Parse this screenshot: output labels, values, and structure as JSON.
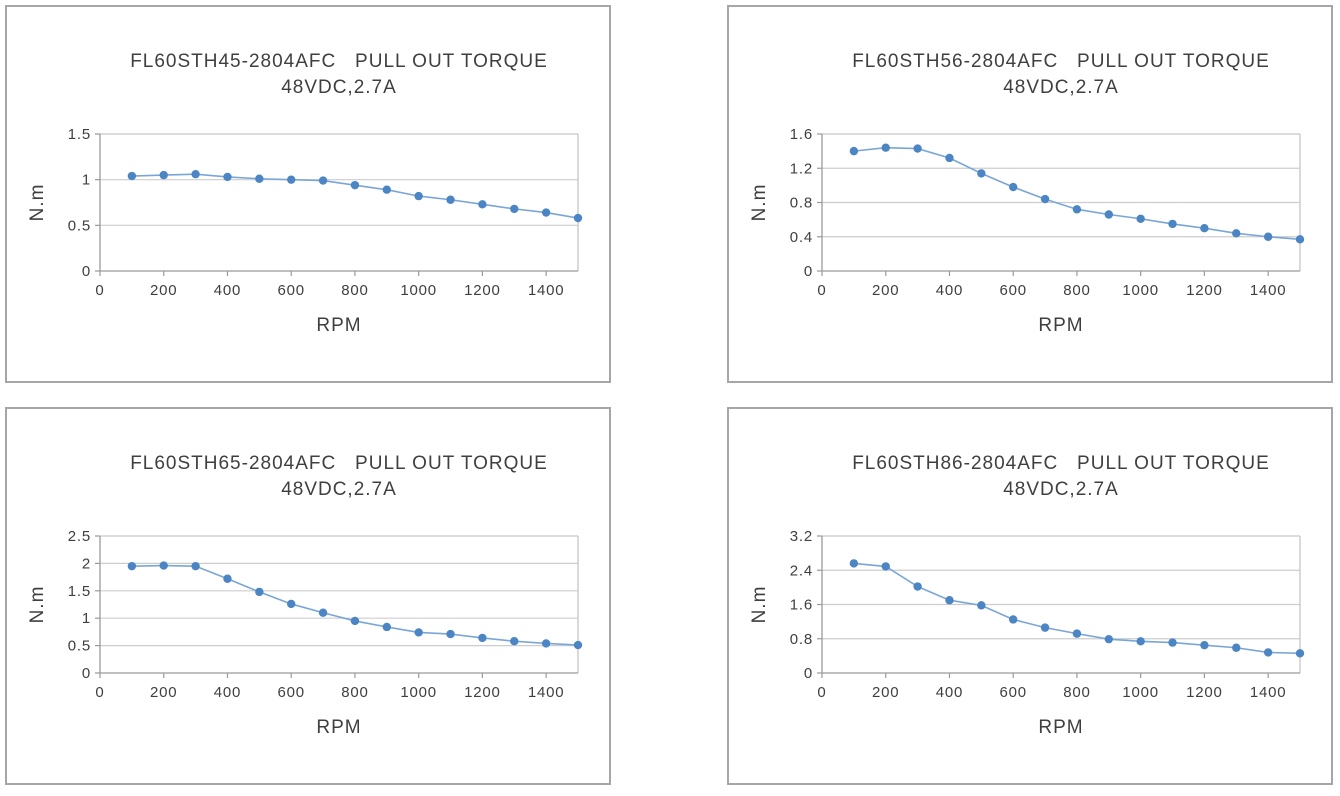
{
  "page": {
    "background": "#ffffff"
  },
  "style": {
    "panel_border_color": "#a5a5ab",
    "plot_border_color": "#c6c6ca",
    "gridline_color": "#cdcdd1",
    "axis_color": "#9a9a9e",
    "line_color": "#7aa6d6",
    "marker_color": "#4c85c3",
    "text_color": "#3f3f3f"
  },
  "chart_data": [
    {
      "type": "line",
      "title_line1": "FL60STH45-2804AFC   PULL OUT TORQUE",
      "title_line2": "48VDC,2.7A",
      "xlabel": "RPM",
      "ylabel": "N.m",
      "xlim": [
        0,
        1500
      ],
      "ylim": [
        0,
        1.5
      ],
      "x_ticks": [
        0,
        200,
        400,
        600,
        800,
        1000,
        1200,
        1400
      ],
      "x_tick_labels": [
        "0",
        "200",
        "400",
        "600",
        "800",
        "1000",
        "1200",
        "1400"
      ],
      "y_ticks": [
        0,
        0.5,
        1,
        1.5
      ],
      "y_tick_labels": [
        "0",
        "0.5",
        "1",
        "1.5"
      ],
      "x": [
        100,
        200,
        300,
        400,
        500,
        600,
        700,
        800,
        900,
        1000,
        1100,
        1200,
        1300,
        1400,
        1500
      ],
      "values": [
        1.04,
        1.05,
        1.06,
        1.03,
        1.01,
        1.0,
        0.99,
        0.94,
        0.89,
        0.82,
        0.78,
        0.73,
        0.68,
        0.64,
        0.58
      ],
      "grid": "horizontal",
      "legend": "none"
    },
    {
      "type": "line",
      "title_line1": "FL60STH56-2804AFC   PULL OUT TORQUE",
      "title_line2": "48VDC,2.7A",
      "xlabel": "RPM",
      "ylabel": "N.m",
      "xlim": [
        0,
        1500
      ],
      "ylim": [
        0,
        1.6
      ],
      "x_ticks": [
        0,
        200,
        400,
        600,
        800,
        1000,
        1200,
        1400
      ],
      "x_tick_labels": [
        "0",
        "200",
        "400",
        "600",
        "800",
        "1000",
        "1200",
        "1400"
      ],
      "y_ticks": [
        0,
        0.4,
        0.8,
        1.2,
        1.6
      ],
      "y_tick_labels": [
        "0",
        "0.4",
        "0.8",
        "1.2",
        "1.6"
      ],
      "x": [
        100,
        200,
        300,
        400,
        500,
        600,
        700,
        800,
        900,
        1000,
        1100,
        1200,
        1300,
        1400,
        1500
      ],
      "values": [
        1.4,
        1.44,
        1.43,
        1.32,
        1.14,
        0.98,
        0.84,
        0.72,
        0.66,
        0.61,
        0.55,
        0.5,
        0.44,
        0.4,
        0.37
      ],
      "grid": "horizontal",
      "legend": "none"
    },
    {
      "type": "line",
      "title_line1": "FL60STH65-2804AFC   PULL OUT TORQUE",
      "title_line2": "48VDC,2.7A",
      "xlabel": "RPM",
      "ylabel": "N.m",
      "xlim": [
        0,
        1500
      ],
      "ylim": [
        0,
        2.5
      ],
      "x_ticks": [
        0,
        200,
        400,
        600,
        800,
        1000,
        1200,
        1400
      ],
      "x_tick_labels": [
        "0",
        "200",
        "400",
        "600",
        "800",
        "1000",
        "1200",
        "1400"
      ],
      "y_ticks": [
        0,
        0.5,
        1,
        1.5,
        2,
        2.5
      ],
      "y_tick_labels": [
        "0",
        "0.5",
        "1",
        "1.5",
        "2",
        "2.5"
      ],
      "x": [
        100,
        200,
        300,
        400,
        500,
        600,
        700,
        800,
        900,
        1000,
        1100,
        1200,
        1300,
        1400,
        1500
      ],
      "values": [
        1.95,
        1.96,
        1.95,
        1.72,
        1.48,
        1.26,
        1.1,
        0.95,
        0.84,
        0.74,
        0.71,
        0.64,
        0.58,
        0.54,
        0.51
      ],
      "grid": "horizontal",
      "legend": "none"
    },
    {
      "type": "line",
      "title_line1": "FL60STH86-2804AFC   PULL OUT TORQUE",
      "title_line2": "48VDC,2.7A",
      "xlabel": "RPM",
      "ylabel": "N.m",
      "xlim": [
        0,
        1500
      ],
      "ylim": [
        0,
        3.2
      ],
      "x_ticks": [
        0,
        200,
        400,
        600,
        800,
        1000,
        1200,
        1400
      ],
      "x_tick_labels": [
        "0",
        "200",
        "400",
        "600",
        "800",
        "1000",
        "1200",
        "1400"
      ],
      "y_ticks": [
        0,
        0.8,
        1.6,
        2.4,
        3.2
      ],
      "y_tick_labels": [
        "0",
        "0.8",
        "1.6",
        "2.4",
        "3.2"
      ],
      "x": [
        100,
        200,
        300,
        400,
        500,
        600,
        700,
        800,
        900,
        1000,
        1100,
        1200,
        1300,
        1400,
        1500
      ],
      "values": [
        2.56,
        2.49,
        2.02,
        1.7,
        1.58,
        1.25,
        1.06,
        0.92,
        0.79,
        0.74,
        0.71,
        0.65,
        0.59,
        0.48,
        0.46
      ],
      "grid": "horizontal",
      "legend": "none"
    }
  ]
}
